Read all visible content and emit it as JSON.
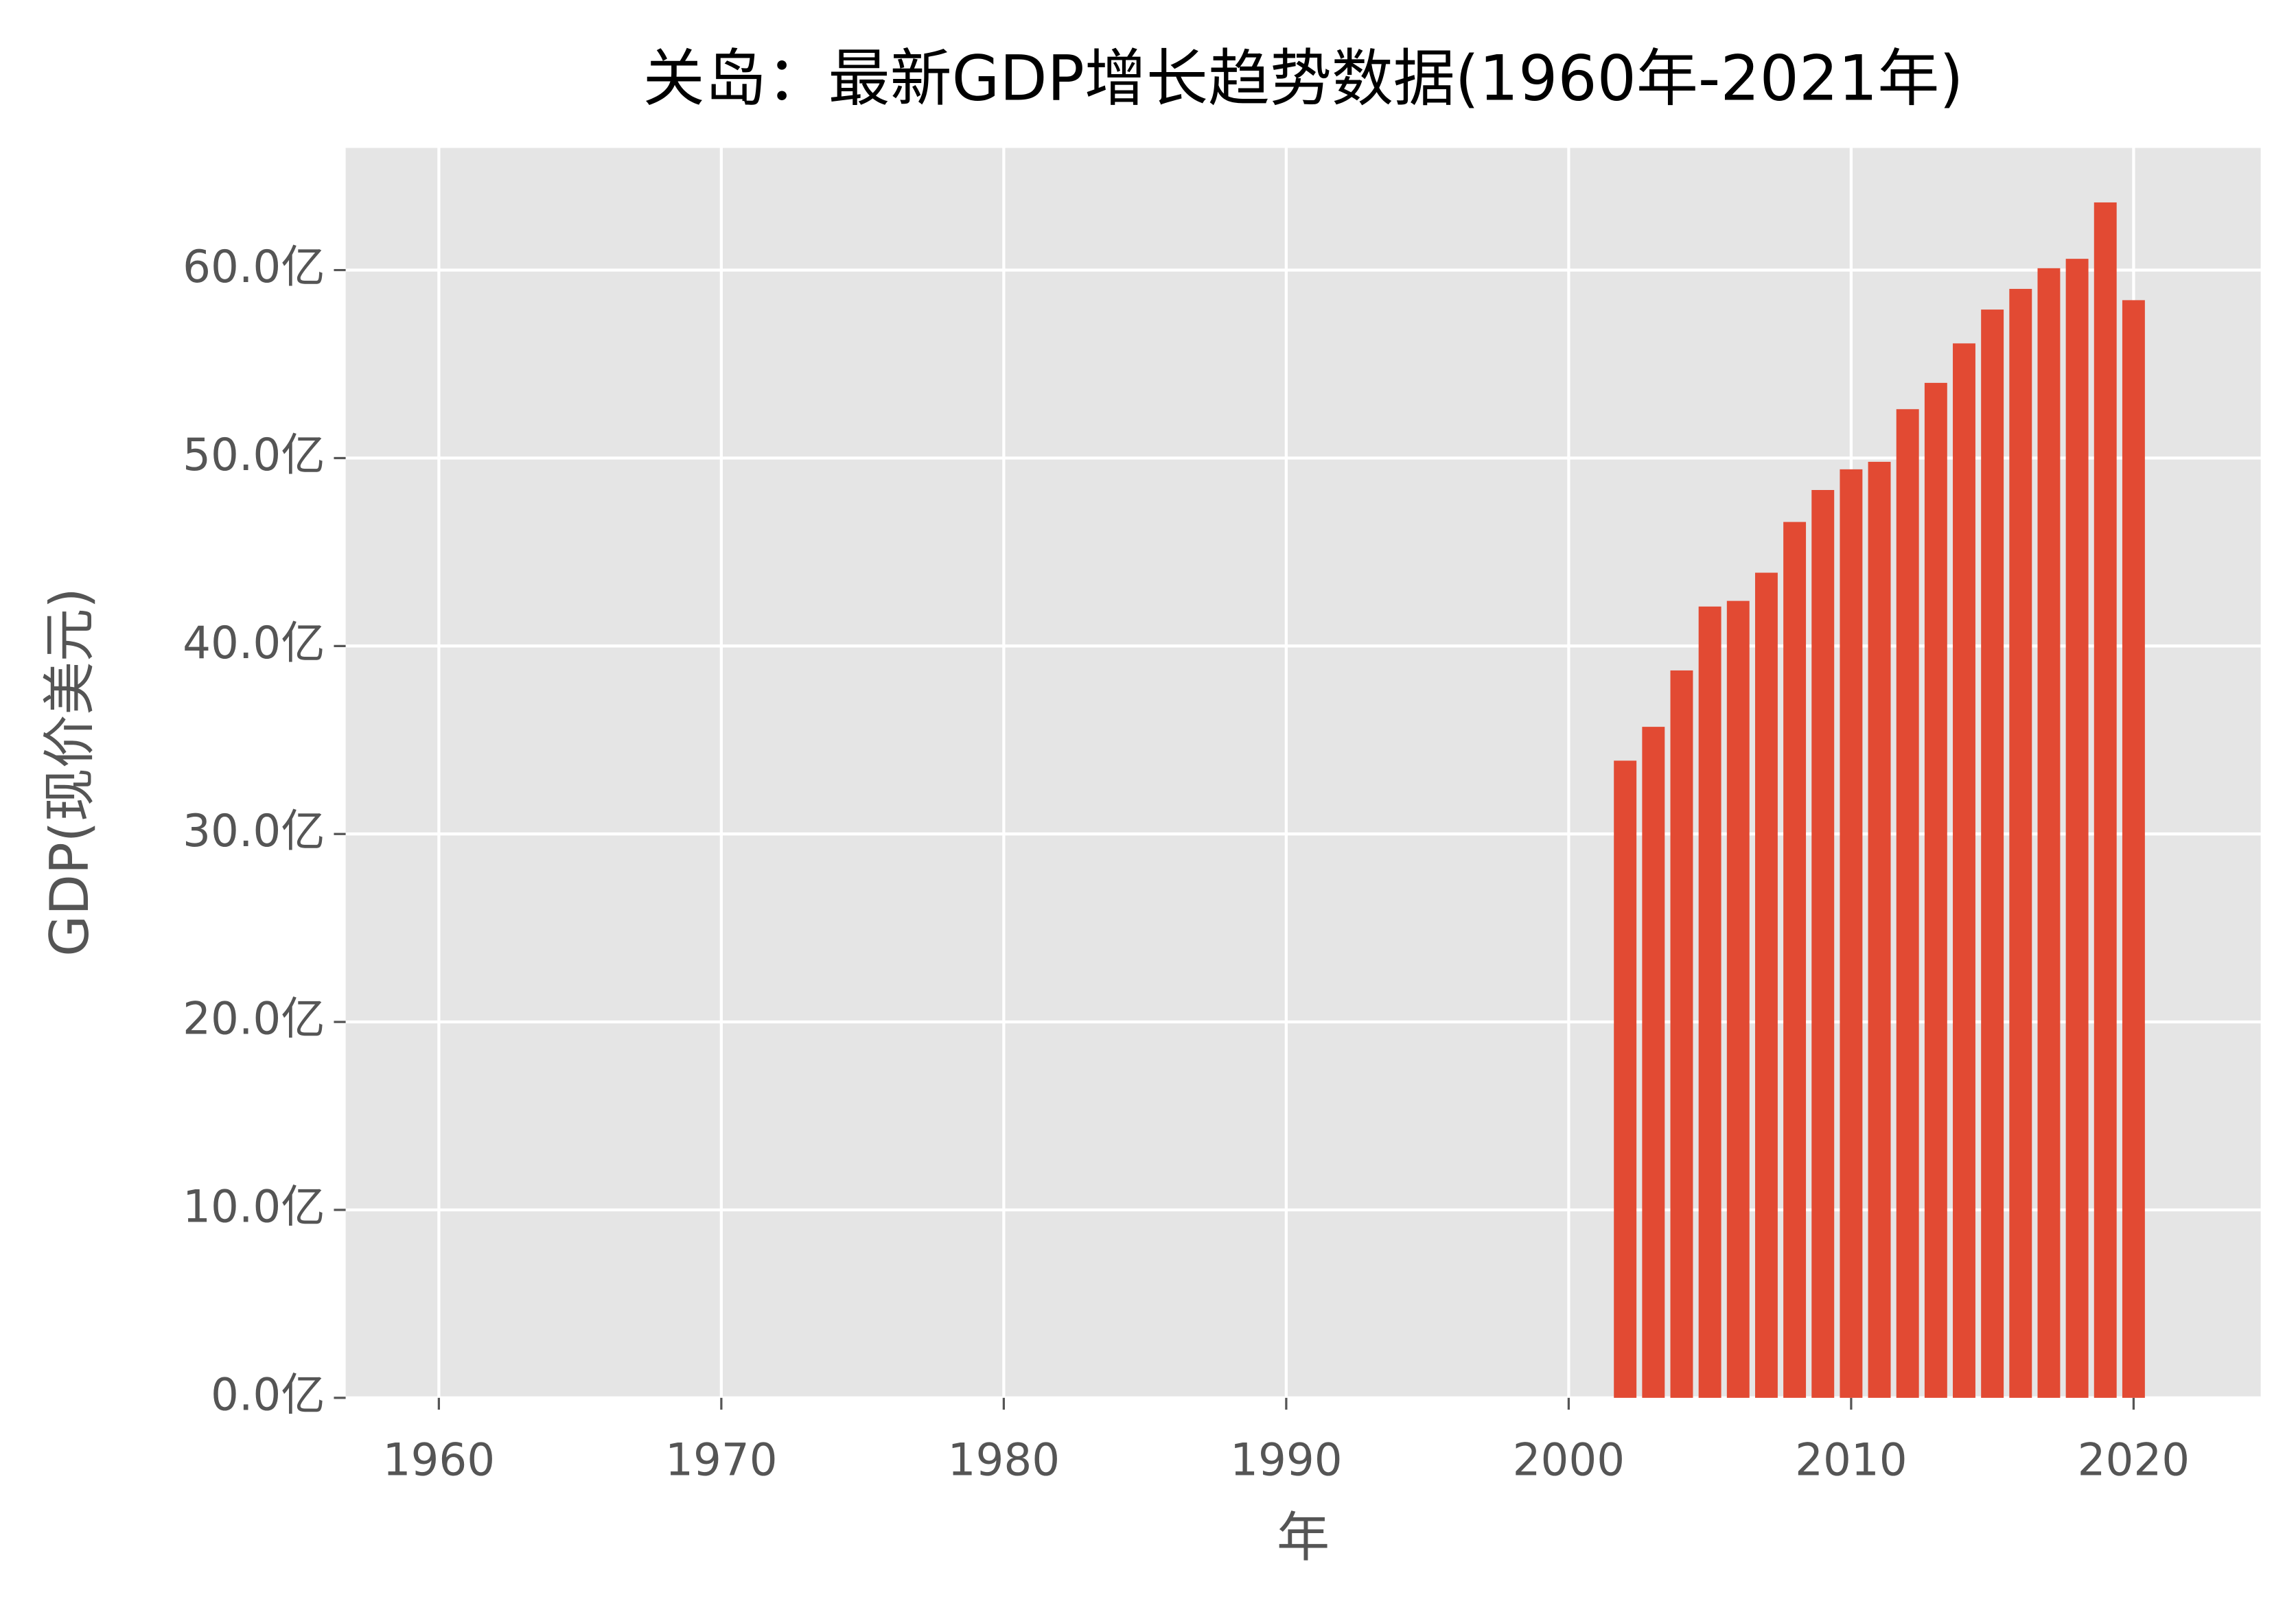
{
  "chart_data": {
    "type": "bar",
    "title": "关岛：最新GDP增长趋势数据(1960年-2021年)",
    "x_label": "年",
    "y_label": "GDP(现价美元)",
    "x": [
      2002,
      2003,
      2004,
      2005,
      2006,
      2007,
      2008,
      2009,
      2010,
      2011,
      2012,
      2013,
      2014,
      2015,
      2016,
      2017,
      2018,
      2019,
      2020
    ],
    "values": [
      33.9,
      35.7,
      38.7,
      42.1,
      42.4,
      43.9,
      46.6,
      48.3,
      49.4,
      49.8,
      52.6,
      54.0,
      56.1,
      57.9,
      59.0,
      60.1,
      60.6,
      63.6,
      58.4
    ],
    "color": "#E24A33",
    "xlim": [
      1956.7,
      2024.5
    ],
    "ylim": [
      0,
      66.5
    ],
    "xticks": [
      1960,
      1970,
      1980,
      1990,
      2000,
      2010,
      2020
    ],
    "yticks": [
      {
        "value": 0,
        "label": "0.0亿"
      },
      {
        "value": 10,
        "label": "10.0亿"
      },
      {
        "value": 20,
        "label": "20.0亿"
      },
      {
        "value": 30,
        "label": "30.0亿"
      },
      {
        "value": 40,
        "label": "40.0亿"
      },
      {
        "value": 50,
        "label": "50.0亿"
      },
      {
        "value": 60,
        "label": "60.0亿"
      }
    ],
    "grid": true
  }
}
